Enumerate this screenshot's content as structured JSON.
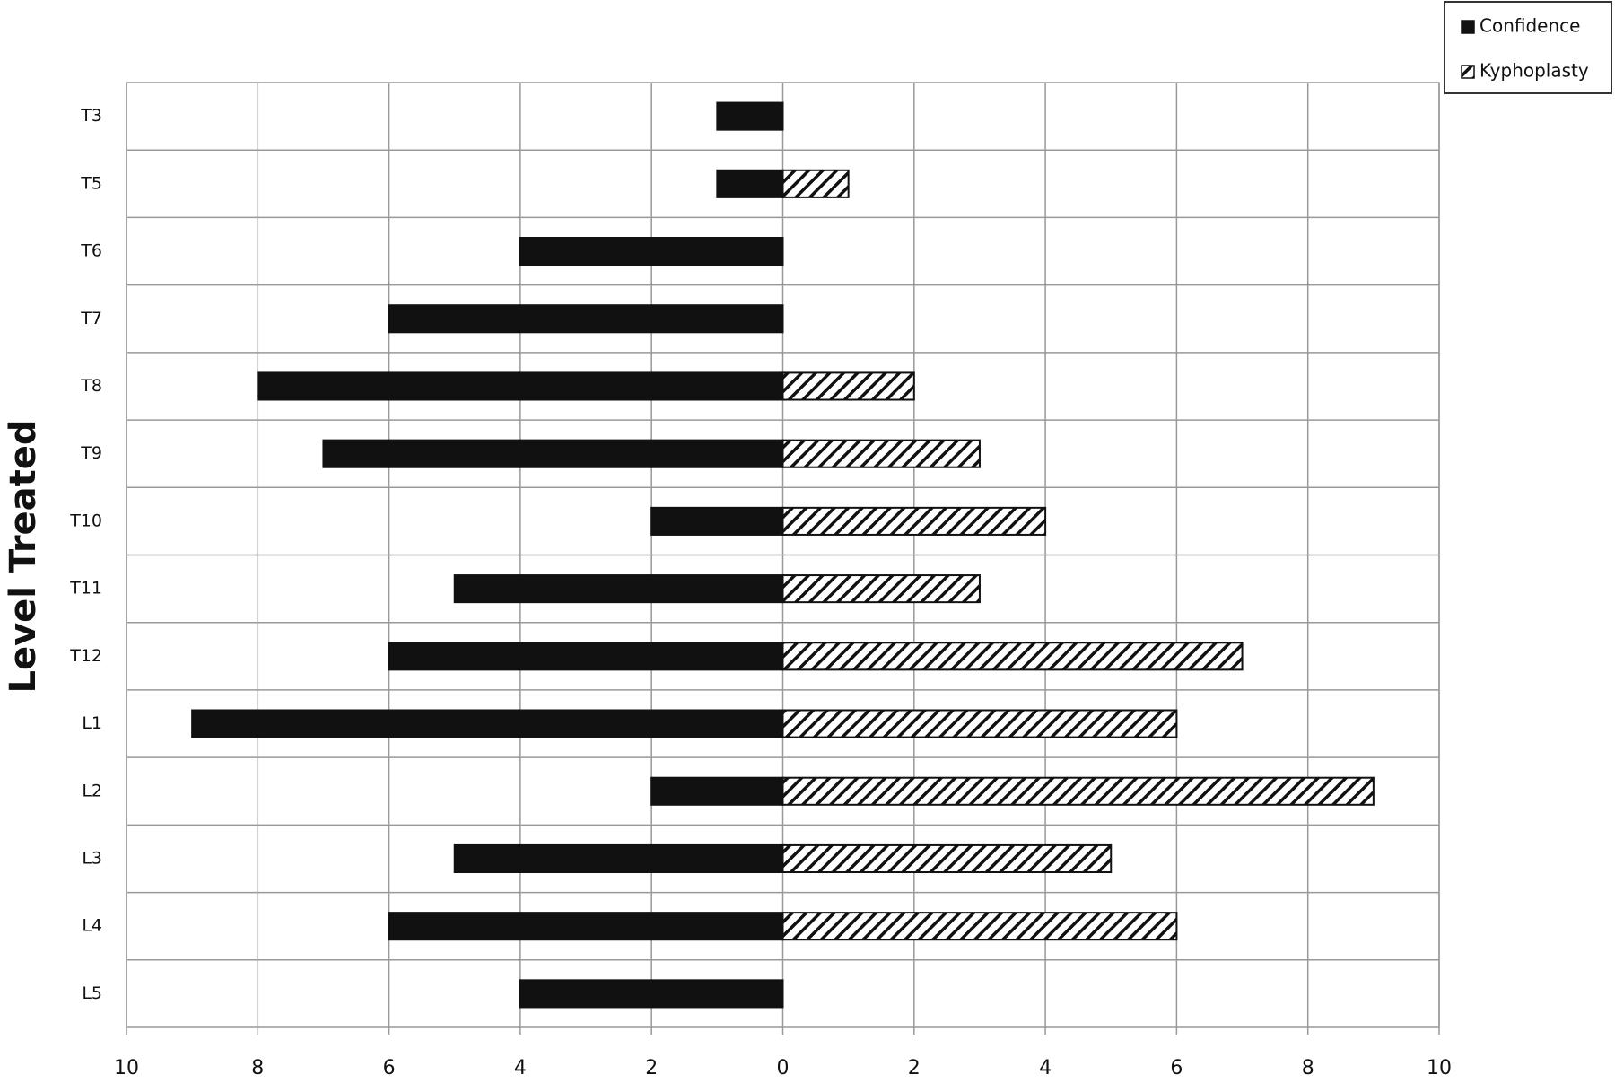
{
  "chart_data": {
    "type": "pyramid",
    "y_label": "Level Treated",
    "categories": [
      "T3",
      "T5",
      "T6",
      "T7",
      "T8",
      "T9",
      "T10",
      "T11",
      "T12",
      "L1",
      "L2",
      "L3",
      "L4",
      "L5"
    ],
    "series": [
      {
        "name": "Confidence",
        "color": "#111111",
        "values": [
          1,
          1,
          4,
          6,
          8,
          7,
          2,
          5,
          6,
          9,
          2,
          5,
          6,
          4
        ]
      },
      {
        "name": "Kyphoplasty",
        "color": "hatch",
        "values": [
          null,
          1,
          null,
          null,
          2,
          3,
          4,
          3,
          7,
          6,
          9,
          5,
          6,
          null
        ]
      }
    ],
    "xlim": [
      -10,
      10
    ],
    "xticks": [
      {
        "value": -10,
        "label": "10"
      },
      {
        "value": -8,
        "label": "8"
      },
      {
        "value": -6,
        "label": "6"
      },
      {
        "value": -4,
        "label": "4"
      },
      {
        "value": -2,
        "label": "2"
      },
      0,
      2,
      4,
      6,
      8,
      10
    ],
    "grid": true,
    "legend": "top-right"
  }
}
